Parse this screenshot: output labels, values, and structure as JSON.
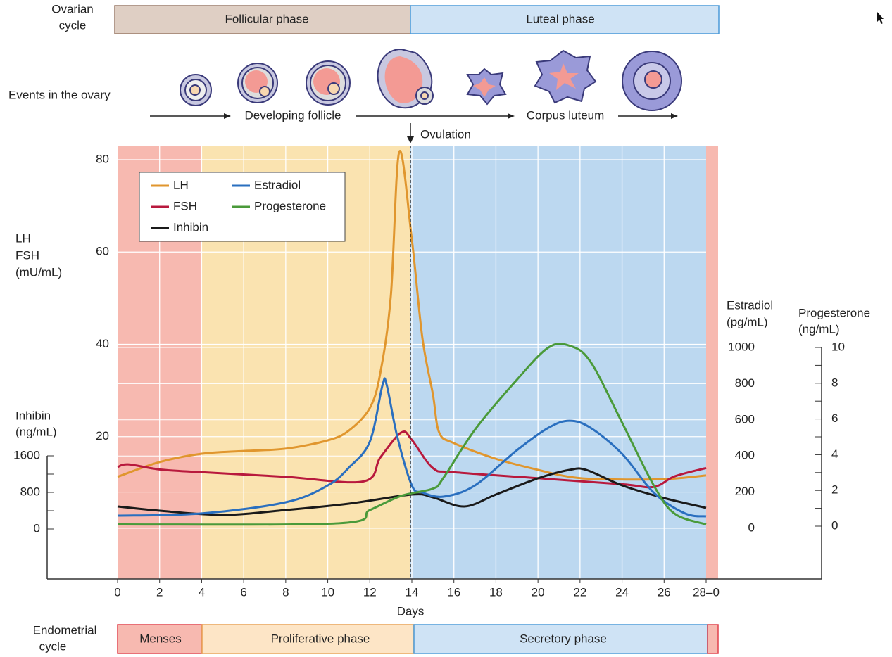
{
  "chart_data": {
    "type": "line",
    "ovarian_cycle": {
      "label": [
        "Ovarian",
        "cycle"
      ],
      "phases": [
        "Follicular phase",
        "Luteal phase"
      ]
    },
    "ovary_events": {
      "label": "Events in the ovary",
      "stages": [
        "Developing follicle",
        "Corpus luteum"
      ],
      "ovulation": "Ovulation"
    },
    "endometrial_cycle": {
      "label": [
        "Endometrial",
        "cycle"
      ],
      "phases": [
        "Menses",
        "Proliferative phase",
        "Secretory phase"
      ]
    },
    "xlabel": "Days",
    "ylabel": [
      "LH",
      "FSH",
      "(mU/mL)"
    ],
    "y2label": [
      "Estradiol",
      "(pg/mL)"
    ],
    "y3label": [
      "Progesterone",
      "(ng/mL)"
    ],
    "y4label": [
      "Inhibin",
      "(ng/mL)"
    ],
    "xlim": [
      0,
      28
    ],
    "xticks": [
      0,
      2,
      4,
      6,
      8,
      10,
      12,
      14,
      16,
      18,
      20,
      22,
      24,
      26,
      {
        "value": 28,
        "label": "28–0"
      }
    ],
    "ylim": [
      0,
      80
    ],
    "yticks": [
      20,
      40,
      60,
      80
    ],
    "y2lim": [
      0,
      1000
    ],
    "y2ticks": [
      0,
      200,
      400,
      600,
      800,
      1000
    ],
    "y3lim": [
      0,
      10
    ],
    "y3ticks": [
      0,
      2,
      4,
      6,
      8,
      10
    ],
    "y3minorticks": [
      1,
      3,
      5,
      7,
      9
    ],
    "y4lim": [
      0,
      1600
    ],
    "y4ticks": [
      0,
      800,
      1600
    ],
    "y4minorticks": [
      400,
      1200
    ],
    "grid": true,
    "series": [
      {
        "name": "LH",
        "color": "#e0962e",
        "axis": "y",
        "x": [
          0,
          2,
          4,
          6,
          8,
          10,
          11,
          12,
          12.5,
          13,
          13.4,
          14,
          14.5,
          15,
          15.3,
          16,
          18,
          20,
          21.5,
          23,
          26,
          28
        ],
        "values": [
          11.3,
          14.5,
          16.3,
          16.9,
          17.4,
          19.2,
          21.3,
          26.2,
          33.8,
          50.5,
          81.7,
          62.7,
          41.4,
          29.2,
          20.9,
          18.6,
          15.2,
          12.8,
          11.3,
          10.8,
          10.8,
          11.6
        ]
      },
      {
        "name": "FSH",
        "color": "#b8193d",
        "axis": "y",
        "x": [
          0,
          0.5,
          2,
          4,
          8,
          11.7,
          12.5,
          13.5,
          14,
          15,
          16,
          20,
          24,
          25.5,
          26.5,
          28
        ],
        "values": [
          13.4,
          14,
          12.9,
          12.3,
          11.3,
          10.3,
          15.5,
          20.9,
          19.3,
          13.2,
          12.3,
          11,
          9.7,
          9.1,
          11.4,
          13.2
        ]
      },
      {
        "name": "Inhibin",
        "color": "#1a1a1a",
        "axis": "y4",
        "x": [
          0,
          2,
          5,
          8,
          11,
          14,
          15,
          16.5,
          18,
          20,
          21.5,
          22.3,
          24,
          26,
          28
        ],
        "values": [
          492,
          400,
          308,
          415,
          554,
          754,
          692,
          492,
          754,
          1108,
          1292,
          1292,
          954,
          677,
          462
        ]
      },
      {
        "name": "Estradiol",
        "color": "#2a6fbf",
        "axis": "y2",
        "x": [
          0,
          4,
          8,
          10,
          11,
          12,
          12.6,
          12.8,
          13.3,
          14,
          14.5,
          15.5,
          17,
          19,
          20.5,
          21.5,
          22.5,
          24,
          25.5,
          27,
          28
        ],
        "values": [
          70,
          82,
          144,
          237,
          335,
          479,
          790,
          794,
          510,
          237,
          198,
          175,
          237,
          432,
          556,
          595,
          556,
          412,
          198,
          82,
          66
        ]
      },
      {
        "name": "Progesterone",
        "color": "#4a9a3a",
        "axis": "y3",
        "x": [
          0,
          10.5,
          12,
          13.5,
          15,
          15.5,
          17,
          19,
          20.5,
          21.5,
          22.5,
          24,
          25.5,
          26.5,
          28
        ],
        "values": [
          0.1,
          0.16,
          0.9,
          1.7,
          2.1,
          2.7,
          5.4,
          8.2,
          10,
          10.1,
          9.2,
          5.8,
          2.3,
          0.7,
          0.1
        ]
      }
    ]
  }
}
